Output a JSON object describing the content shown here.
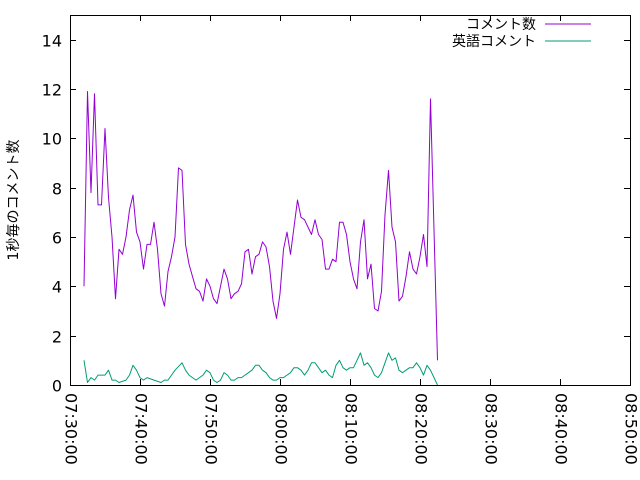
{
  "chart_data": {
    "type": "line",
    "title": "",
    "xlabel": "",
    "ylabel": "1秒毎のコメント数",
    "xlim": [
      "07:30:00",
      "08:50:00"
    ],
    "ylim": [
      0,
      15
    ],
    "x_ticks": [
      "07:30:00",
      "07:40:00",
      "07:50:00",
      "08:00:00",
      "08:10:00",
      "08:20:00",
      "08:30:00",
      "08:40:00",
      "08:50:00"
    ],
    "y_ticks": [
      "0",
      "2",
      "4",
      "6",
      "8",
      "10",
      "12",
      "14"
    ],
    "legend_position": "top-right",
    "grid": false,
    "series": [
      {
        "name": "コメント数",
        "color": "#9400d3",
        "points": [
          [
            "07:32:00",
            4.0
          ],
          [
            "07:32:30",
            11.9
          ],
          [
            "07:33:00",
            7.8
          ],
          [
            "07:33:30",
            11.8
          ],
          [
            "07:34:00",
            7.3
          ],
          [
            "07:34:30",
            7.3
          ],
          [
            "07:35:00",
            10.4
          ],
          [
            "07:35:30",
            7.6
          ],
          [
            "07:36:00",
            6.0
          ],
          [
            "07:36:30",
            3.5
          ],
          [
            "07:37:00",
            5.5
          ],
          [
            "07:37:30",
            5.3
          ],
          [
            "07:38:00",
            6.0
          ],
          [
            "07:38:30",
            7.1
          ],
          [
            "07:39:00",
            7.7
          ],
          [
            "07:39:30",
            6.2
          ],
          [
            "07:40:00",
            5.8
          ],
          [
            "07:40:30",
            4.7
          ],
          [
            "07:41:00",
            5.7
          ],
          [
            "07:41:30",
            5.7
          ],
          [
            "07:42:00",
            6.6
          ],
          [
            "07:42:30",
            5.5
          ],
          [
            "07:43:00",
            3.7
          ],
          [
            "07:43:30",
            3.2
          ],
          [
            "07:44:00",
            4.6
          ],
          [
            "07:44:30",
            5.2
          ],
          [
            "07:45:00",
            6.0
          ],
          [
            "07:45:30",
            8.8
          ],
          [
            "07:46:00",
            8.7
          ],
          [
            "07:46:30",
            5.7
          ],
          [
            "07:47:00",
            4.9
          ],
          [
            "07:47:30",
            4.4
          ],
          [
            "07:48:00",
            3.9
          ],
          [
            "07:48:30",
            3.8
          ],
          [
            "07:49:00",
            3.4
          ],
          [
            "07:49:30",
            4.3
          ],
          [
            "07:50:00",
            4.0
          ],
          [
            "07:50:30",
            3.5
          ],
          [
            "07:51:00",
            3.3
          ],
          [
            "07:51:30",
            4.0
          ],
          [
            "07:52:00",
            4.7
          ],
          [
            "07:52:30",
            4.3
          ],
          [
            "07:53:00",
            3.5
          ],
          [
            "07:53:30",
            3.7
          ],
          [
            "07:54:00",
            3.8
          ],
          [
            "07:54:30",
            4.1
          ],
          [
            "07:55:00",
            5.4
          ],
          [
            "07:55:30",
            5.5
          ],
          [
            "07:56:00",
            4.5
          ],
          [
            "07:56:30",
            5.2
          ],
          [
            "07:57:00",
            5.3
          ],
          [
            "07:57:30",
            5.8
          ],
          [
            "07:58:00",
            5.6
          ],
          [
            "07:58:30",
            4.8
          ],
          [
            "07:59:00",
            3.4
          ],
          [
            "07:59:30",
            2.7
          ],
          [
            "08:00:00",
            3.7
          ],
          [
            "08:00:30",
            5.5
          ],
          [
            "08:01:00",
            6.2
          ],
          [
            "08:01:30",
            5.3
          ],
          [
            "08:02:00",
            6.4
          ],
          [
            "08:02:30",
            7.5
          ],
          [
            "08:03:00",
            6.8
          ],
          [
            "08:03:30",
            6.7
          ],
          [
            "08:04:00",
            6.4
          ],
          [
            "08:04:30",
            6.1
          ],
          [
            "08:05:00",
            6.7
          ],
          [
            "08:05:30",
            6.1
          ],
          [
            "08:06:00",
            5.9
          ],
          [
            "08:06:30",
            4.7
          ],
          [
            "08:07:00",
            4.7
          ],
          [
            "08:07:30",
            5.1
          ],
          [
            "08:08:00",
            5.0
          ],
          [
            "08:08:30",
            6.6
          ],
          [
            "08:09:00",
            6.6
          ],
          [
            "08:09:30",
            6.1
          ],
          [
            "08:10:00",
            5.0
          ],
          [
            "08:10:30",
            4.3
          ],
          [
            "08:11:00",
            3.9
          ],
          [
            "08:11:30",
            5.8
          ],
          [
            "08:12:00",
            6.7
          ],
          [
            "08:12:30",
            4.3
          ],
          [
            "08:13:00",
            4.9
          ],
          [
            "08:13:30",
            3.1
          ],
          [
            "08:14:00",
            3.0
          ],
          [
            "08:14:30",
            3.8
          ],
          [
            "08:15:00",
            6.9
          ],
          [
            "08:15:30",
            8.7
          ],
          [
            "08:16:00",
            6.4
          ],
          [
            "08:16:30",
            5.8
          ],
          [
            "08:17:00",
            3.4
          ],
          [
            "08:17:30",
            3.6
          ],
          [
            "08:18:00",
            4.4
          ],
          [
            "08:18:30",
            5.4
          ],
          [
            "08:19:00",
            4.7
          ],
          [
            "08:19:30",
            4.5
          ],
          [
            "08:20:00",
            5.2
          ],
          [
            "08:20:30",
            6.1
          ],
          [
            "08:21:00",
            4.8
          ],
          [
            "08:21:30",
            11.6
          ],
          [
            "08:22:30",
            1.0
          ]
        ]
      },
      {
        "name": "英語コメント",
        "color": "#009e73",
        "points": [
          [
            "07:32:00",
            1.0
          ],
          [
            "07:32:30",
            0.1
          ],
          [
            "07:33:00",
            0.3
          ],
          [
            "07:33:30",
            0.2
          ],
          [
            "07:34:00",
            0.4
          ],
          [
            "07:35:00",
            0.4
          ],
          [
            "07:35:30",
            0.6
          ],
          [
            "07:36:00",
            0.2
          ],
          [
            "07:36:30",
            0.2
          ],
          [
            "07:37:00",
            0.1
          ],
          [
            "07:38:00",
            0.2
          ],
          [
            "07:38:30",
            0.4
          ],
          [
            "07:39:00",
            0.8
          ],
          [
            "07:39:30",
            0.6
          ],
          [
            "07:40:00",
            0.3
          ],
          [
            "07:40:30",
            0.2
          ],
          [
            "07:41:00",
            0.3
          ],
          [
            "07:42:00",
            0.2
          ],
          [
            "07:43:00",
            0.1
          ],
          [
            "07:43:30",
            0.2
          ],
          [
            "07:44:00",
            0.2
          ],
          [
            "07:44:30",
            0.4
          ],
          [
            "07:45:00",
            0.6
          ],
          [
            "07:46:00",
            0.9
          ],
          [
            "07:46:30",
            0.6
          ],
          [
            "07:47:00",
            0.4
          ],
          [
            "07:47:30",
            0.3
          ],
          [
            "07:48:00",
            0.2
          ],
          [
            "07:48:30",
            0.3
          ],
          [
            "07:49:00",
            0.4
          ],
          [
            "07:49:30",
            0.6
          ],
          [
            "07:50:00",
            0.5
          ],
          [
            "07:50:30",
            0.2
          ],
          [
            "07:51:00",
            0.1
          ],
          [
            "07:51:30",
            0.2
          ],
          [
            "07:52:00",
            0.5
          ],
          [
            "07:52:30",
            0.4
          ],
          [
            "07:53:00",
            0.2
          ],
          [
            "07:53:30",
            0.2
          ],
          [
            "07:54:00",
            0.3
          ],
          [
            "07:54:30",
            0.3
          ],
          [
            "07:55:00",
            0.4
          ],
          [
            "07:55:30",
            0.5
          ],
          [
            "07:56:00",
            0.6
          ],
          [
            "07:56:30",
            0.8
          ],
          [
            "07:57:00",
            0.8
          ],
          [
            "07:57:30",
            0.6
          ],
          [
            "07:58:00",
            0.5
          ],
          [
            "07:58:30",
            0.3
          ],
          [
            "07:59:00",
            0.2
          ],
          [
            "07:59:30",
            0.2
          ],
          [
            "08:00:00",
            0.3
          ],
          [
            "08:00:30",
            0.3
          ],
          [
            "08:01:00",
            0.4
          ],
          [
            "08:01:30",
            0.5
          ],
          [
            "08:02:00",
            0.7
          ],
          [
            "08:02:30",
            0.7
          ],
          [
            "08:03:00",
            0.6
          ],
          [
            "08:03:30",
            0.4
          ],
          [
            "08:04:00",
            0.6
          ],
          [
            "08:04:30",
            0.9
          ],
          [
            "08:05:00",
            0.9
          ],
          [
            "08:05:30",
            0.7
          ],
          [
            "08:06:00",
            0.5
          ],
          [
            "08:06:30",
            0.6
          ],
          [
            "08:07:00",
            0.4
          ],
          [
            "08:07:30",
            0.3
          ],
          [
            "08:08:00",
            0.8
          ],
          [
            "08:08:30",
            1.0
          ],
          [
            "08:09:00",
            0.7
          ],
          [
            "08:09:30",
            0.6
          ],
          [
            "08:10:00",
            0.7
          ],
          [
            "08:10:30",
            0.7
          ],
          [
            "08:11:00",
            1.0
          ],
          [
            "08:11:30",
            1.3
          ],
          [
            "08:12:00",
            0.8
          ],
          [
            "08:12:30",
            0.9
          ],
          [
            "08:13:00",
            0.7
          ],
          [
            "08:13:30",
            0.4
          ],
          [
            "08:14:00",
            0.3
          ],
          [
            "08:14:30",
            0.5
          ],
          [
            "08:15:00",
            0.9
          ],
          [
            "08:15:30",
            1.3
          ],
          [
            "08:16:00",
            1.0
          ],
          [
            "08:16:30",
            1.1
          ],
          [
            "08:17:00",
            0.6
          ],
          [
            "08:17:30",
            0.5
          ],
          [
            "08:18:00",
            0.6
          ],
          [
            "08:18:30",
            0.7
          ],
          [
            "08:19:00",
            0.7
          ],
          [
            "08:19:30",
            0.9
          ],
          [
            "08:20:00",
            0.7
          ],
          [
            "08:20:30",
            0.4
          ],
          [
            "08:21:00",
            0.8
          ],
          [
            "08:21:30",
            0.6
          ],
          [
            "08:22:00",
            0.3
          ],
          [
            "08:22:30",
            0.0
          ]
        ]
      }
    ]
  }
}
